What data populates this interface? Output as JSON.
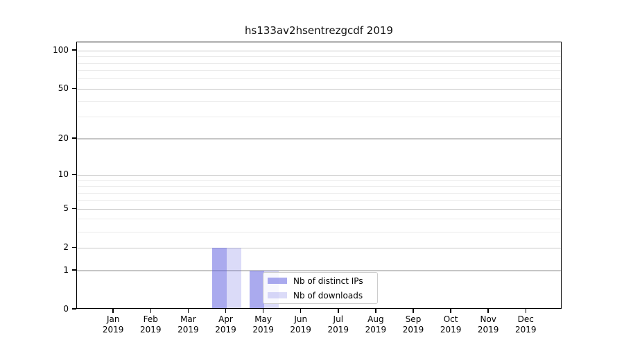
{
  "title": "hs133av2hsentrezgcdf 2019",
  "legend": {
    "items": [
      {
        "label": "Nb of distinct IPs",
        "color": "rgba(85,85,221,0.5)"
      },
      {
        "label": "Nb of downloads",
        "color": "rgba(85,85,221,0.21)"
      }
    ]
  },
  "chart_data": {
    "type": "bar",
    "title": "hs133av2hsentrezgcdf 2019",
    "categories": [
      {
        "month": "Jan",
        "year": "2019"
      },
      {
        "month": "Feb",
        "year": "2019"
      },
      {
        "month": "Mar",
        "year": "2019"
      },
      {
        "month": "Apr",
        "year": "2019"
      },
      {
        "month": "May",
        "year": "2019"
      },
      {
        "month": "Jun",
        "year": "2019"
      },
      {
        "month": "Jul",
        "year": "2019"
      },
      {
        "month": "Aug",
        "year": "2019"
      },
      {
        "month": "Sep",
        "year": "2019"
      },
      {
        "month": "Oct",
        "year": "2019"
      },
      {
        "month": "Nov",
        "year": "2019"
      },
      {
        "month": "Dec",
        "year": "2019"
      }
    ],
    "series": [
      {
        "name": "Nb of distinct IPs",
        "color": "rgba(85,85,221,0.5)",
        "values": [
          0,
          0,
          0,
          2,
          1,
          0,
          0,
          0,
          0,
          0,
          0,
          0
        ]
      },
      {
        "name": "Nb of downloads",
        "color": "rgba(85,85,221,0.21)",
        "values": [
          0,
          0,
          0,
          2,
          1,
          0,
          0,
          0,
          0,
          0,
          0,
          0
        ]
      }
    ],
    "xlabel": "",
    "ylabel": "",
    "yscale": "log1p",
    "ylim": [
      0,
      116
    ],
    "yticks": [
      0,
      1,
      2,
      5,
      10,
      20,
      50,
      100
    ],
    "minor_yticks": [
      3,
      4,
      6,
      7,
      8,
      9,
      30,
      40,
      60,
      70,
      80,
      90
    ],
    "grid": "horizontal major+minor",
    "legend_position": "inside lower center"
  },
  "colors": {
    "bar_distinct_ips": "rgba(85,85,221,0.5)",
    "bar_downloads": "rgba(85,85,221,0.21)",
    "grid_major": "#c6c6c6",
    "grid_minor": "#ebebeb",
    "spine": "#000000"
  }
}
